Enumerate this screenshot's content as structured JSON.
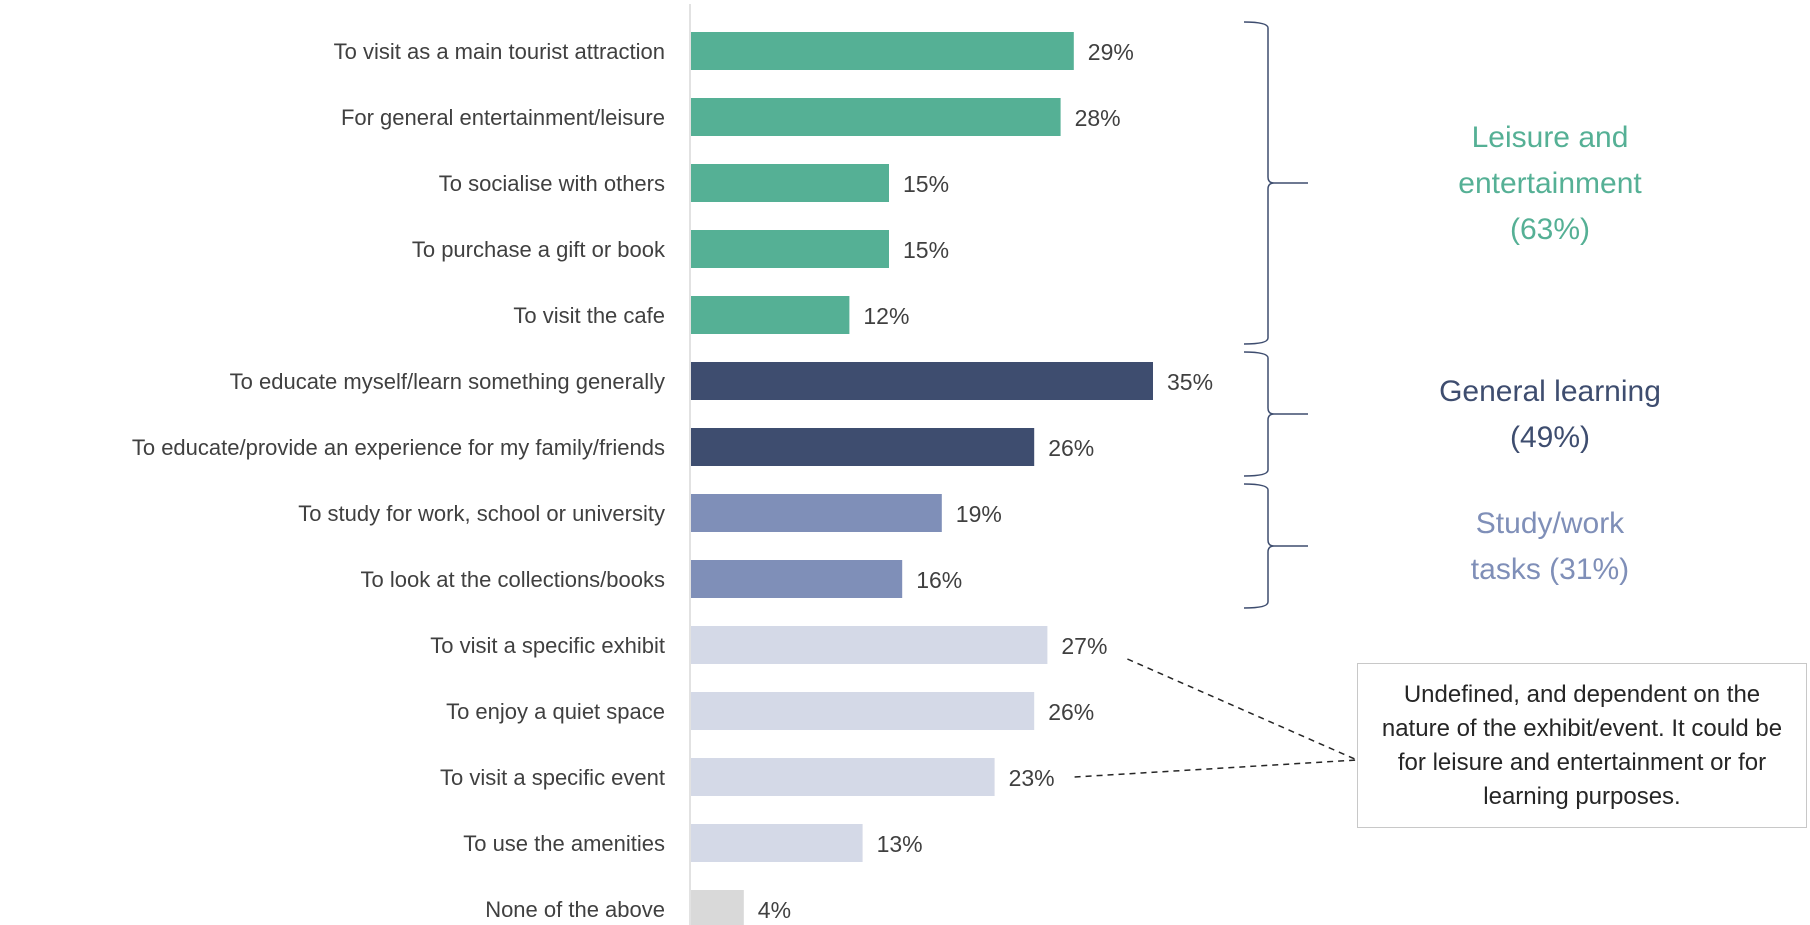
{
  "chart_data": {
    "type": "bar",
    "orientation": "horizontal",
    "categories": [
      "To visit as a main tourist attraction",
      "For general entertainment/leisure",
      "To socialise with others",
      "To purchase a gift or book",
      "To visit the cafe",
      "To educate myself/learn something generally",
      "To educate/provide an experience for my family/friends",
      "To study for work, school or university",
      "To look at the collections/books",
      "To visit a specific exhibit",
      "To enjoy a quiet space",
      "To visit a specific event",
      "To use the amenities",
      "None of the above"
    ],
    "values": [
      29,
      28,
      15,
      15,
      12,
      35,
      26,
      19,
      16,
      27,
      26,
      23,
      13,
      4
    ],
    "value_labels": [
      "29%",
      "28%",
      "15%",
      "15%",
      "12%",
      "35%",
      "26%",
      "19%",
      "16%",
      "27%",
      "26%",
      "23%",
      "13%",
      "4%"
    ],
    "bar_groups": [
      "leisure",
      "leisure",
      "leisure",
      "leisure",
      "leisure",
      "learning",
      "learning",
      "study",
      "study",
      "undefined",
      "undefined",
      "undefined",
      "undefined",
      "none"
    ],
    "colors": {
      "leisure": "#55b095",
      "learning": "#3e4d6f",
      "study": "#7f8fb8",
      "undefined": "#d4d9e7",
      "none": "#d9d9d9",
      "axis": "#d9d9d9",
      "bracket": "#3e4d6f"
    },
    "xlim": [
      0,
      35
    ],
    "grid": false,
    "legend": "none",
    "groups": [
      {
        "key": "leisure",
        "lines": [
          "Leisure and",
          "entertainment",
          "(63%)"
        ],
        "color": "#55b095",
        "from": 0,
        "to": 4
      },
      {
        "key": "learning",
        "lines": [
          "General learning",
          "(49%)"
        ],
        "color": "#3e4d6f",
        "from": 5,
        "to": 6
      },
      {
        "key": "study",
        "lines": [
          "Study/work",
          "tasks (31%)"
        ],
        "color": "#7f8fb8",
        "from": 7,
        "to": 8
      }
    ],
    "annotation": "Undefined, and dependent on the nature of the exhibit/event. It could be for leisure and entertainment or for learning purposes."
  }
}
